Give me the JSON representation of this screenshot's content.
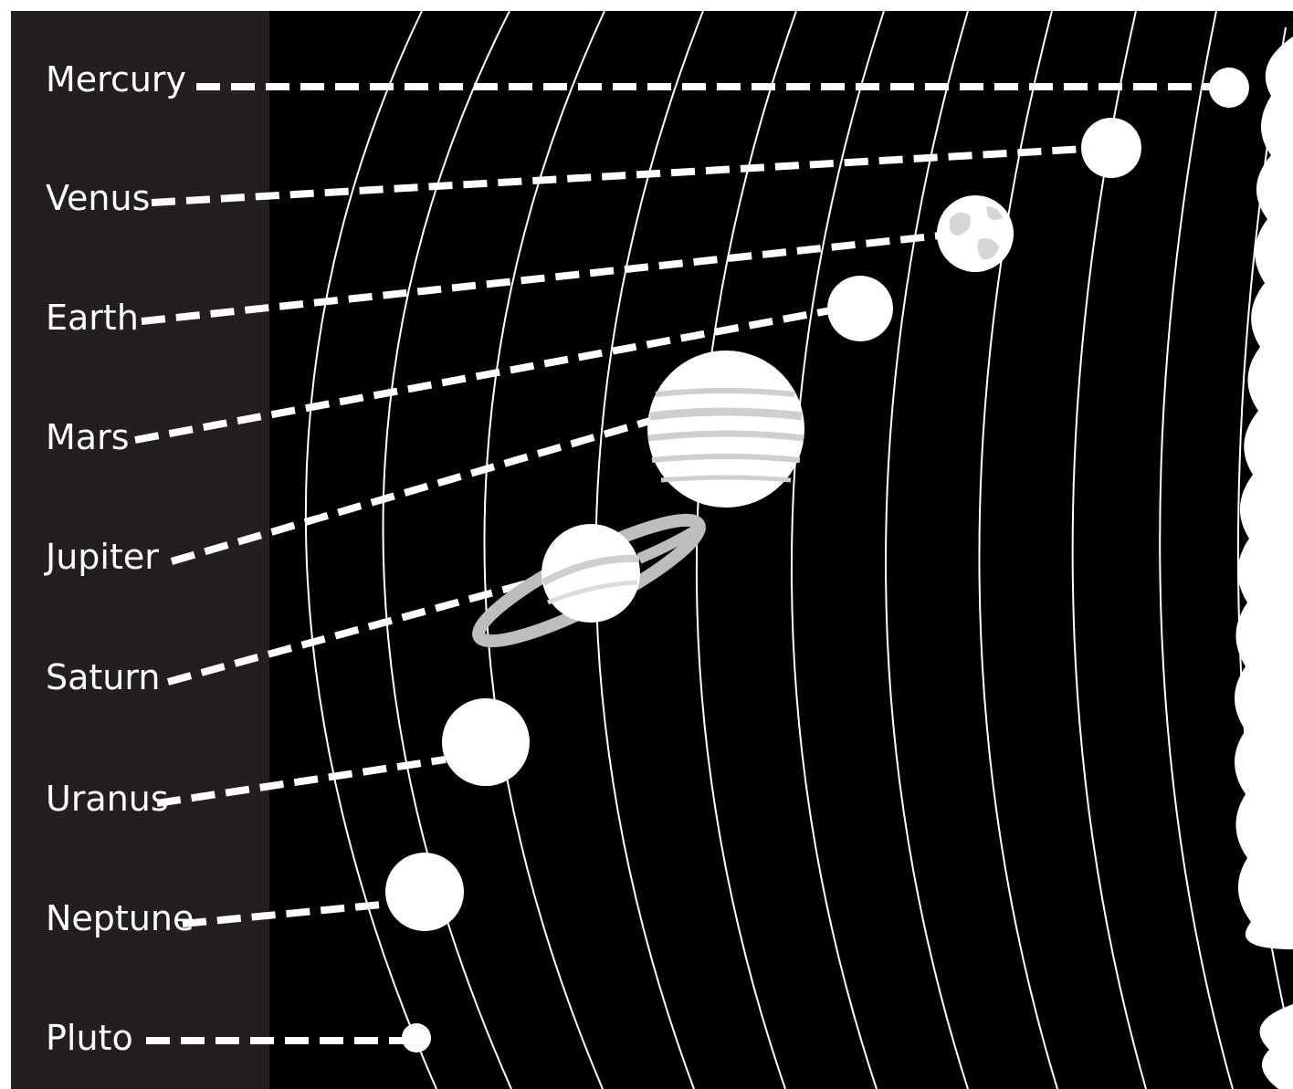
{
  "diagram": {
    "colors": {
      "label_panel": "#231f20",
      "space": "#000000",
      "page": "#ffffff",
      "planet": "#ffffff",
      "planet_shading": "#cfcfcf",
      "ring": "#bdbdbd"
    },
    "planets": [
      {
        "name": "Mercury"
      },
      {
        "name": "Venus"
      },
      {
        "name": "Earth"
      },
      {
        "name": "Mars"
      },
      {
        "name": "Jupiter"
      },
      {
        "name": "Saturn"
      },
      {
        "name": "Uranus"
      },
      {
        "name": "Neptune"
      },
      {
        "name": "Pluto"
      }
    ]
  }
}
